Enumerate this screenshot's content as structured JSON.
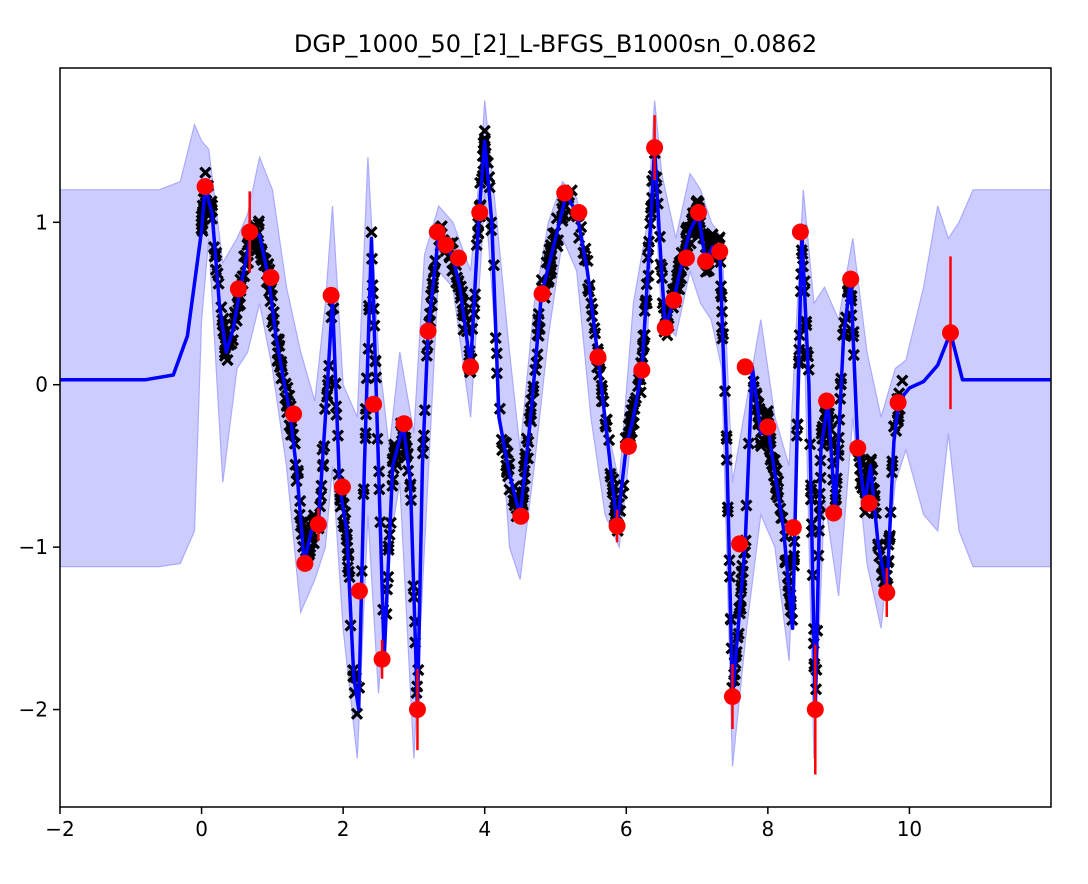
{
  "chart_data": {
    "type": "scatter",
    "title": "DGP_1000_50_[2]_L-BFGS_B1000sn_0.0862",
    "xlabel": "",
    "ylabel": "",
    "xlim": [
      -2,
      12
    ],
    "ylim": [
      -2.6,
      1.95
    ],
    "xticks": [
      -2,
      0,
      2,
      4,
      6,
      8,
      10
    ],
    "yticks": [
      -2,
      -1,
      0,
      1
    ],
    "xtick_labels": [
      "−2",
      "0",
      "2",
      "4",
      "6",
      "8",
      "10"
    ],
    "ytick_labels": [
      "−2",
      "−1",
      "0",
      "1"
    ],
    "grid": false,
    "legend": "none",
    "colors": {
      "mean": "#0000ff",
      "band_fill": "#ccccff",
      "band_edge": "#aaaaff",
      "inducing": "#ff0000",
      "data": "#000000"
    },
    "mean_curve": {
      "x": [
        -2.0,
        -0.8,
        -0.4,
        -0.2,
        0.0,
        0.05,
        0.15,
        0.25,
        0.35,
        0.45,
        0.55,
        0.7,
        0.82,
        0.95,
        1.05,
        1.15,
        1.25,
        1.35,
        1.45,
        1.55,
        1.65,
        1.75,
        1.85,
        1.95,
        2.05,
        2.15,
        2.22,
        2.3,
        2.4,
        2.5,
        2.58,
        2.7,
        2.85,
        2.95,
        3.05,
        3.12,
        3.2,
        3.35,
        3.45,
        3.55,
        3.65,
        3.8,
        3.92,
        4.0,
        4.1,
        4.2,
        4.35,
        4.5,
        4.65,
        4.8,
        5.0,
        5.15,
        5.3,
        5.45,
        5.6,
        5.75,
        5.87,
        6.0,
        6.1,
        6.22,
        6.32,
        6.4,
        6.47,
        6.55,
        6.67,
        6.8,
        6.9,
        7.02,
        7.12,
        7.22,
        7.32,
        7.42,
        7.5,
        7.58,
        7.68,
        7.78,
        7.9,
        8.0,
        8.1,
        8.22,
        8.35,
        8.48,
        8.58,
        8.67,
        8.75,
        8.85,
        8.95,
        9.07,
        9.17,
        9.27,
        9.37,
        9.45,
        9.55,
        9.68,
        9.78,
        9.85,
        10.0,
        10.2,
        10.4,
        10.58,
        10.75,
        11.0,
        12.0
      ],
      "y": [
        0.03,
        0.03,
        0.06,
        0.3,
        0.95,
        1.22,
        1.05,
        0.5,
        0.2,
        0.35,
        0.6,
        0.93,
        0.92,
        0.65,
        0.3,
        0.05,
        -0.18,
        -0.55,
        -1.1,
        -0.9,
        -0.85,
        -0.2,
        0.52,
        -0.62,
        -0.9,
        -1.8,
        -2.0,
        -0.5,
        0.9,
        -0.5,
        -1.68,
        -0.5,
        -0.25,
        -0.6,
        -2.0,
        -0.5,
        0.33,
        0.93,
        0.86,
        0.78,
        0.6,
        0.11,
        1.06,
        1.5,
        1.0,
        -0.2,
        -0.55,
        -0.81,
        -0.2,
        0.55,
        0.9,
        1.17,
        1.06,
        0.7,
        0.17,
        -0.4,
        -0.87,
        -0.38,
        -0.2,
        0.09,
        0.8,
        1.46,
        0.9,
        0.35,
        0.52,
        0.78,
        0.95,
        1.05,
        0.76,
        0.85,
        0.82,
        -0.4,
        -1.92,
        -1.5,
        -0.98,
        0.11,
        -0.3,
        -0.26,
        -0.55,
        -0.88,
        -1.5,
        0.94,
        0.0,
        -2.0,
        -0.4,
        -0.1,
        -0.79,
        0.3,
        0.65,
        -0.39,
        -0.73,
        -0.5,
        -0.95,
        -1.28,
        -0.35,
        -0.1,
        -0.02,
        0.02,
        0.12,
        0.32,
        0.03,
        0.03,
        0.03
      ]
    },
    "band_upper": {
      "x": [
        -2.0,
        -0.6,
        -0.3,
        -0.1,
        0.0,
        0.1,
        0.3,
        0.5,
        0.65,
        0.82,
        1.0,
        1.2,
        1.4,
        1.6,
        1.75,
        1.85,
        2.0,
        2.2,
        2.35,
        2.5,
        2.65,
        2.8,
        3.0,
        3.15,
        3.35,
        3.55,
        3.8,
        3.95,
        4.0,
        4.15,
        4.35,
        4.5,
        4.7,
        4.9,
        5.1,
        5.3,
        5.5,
        5.7,
        5.9,
        6.1,
        6.3,
        6.4,
        6.5,
        6.7,
        6.9,
        7.05,
        7.2,
        7.35,
        7.5,
        7.7,
        7.9,
        8.1,
        8.3,
        8.5,
        8.65,
        8.8,
        9.0,
        9.2,
        9.4,
        9.6,
        9.8,
        9.95,
        10.2,
        10.4,
        10.55,
        10.7,
        10.9,
        11.2,
        12.0
      ],
      "y": [
        1.2,
        1.2,
        1.25,
        1.6,
        1.5,
        1.45,
        0.75,
        0.9,
        1.05,
        1.4,
        1.2,
        0.6,
        0.2,
        -0.1,
        0.5,
        1.1,
        0.0,
        -0.2,
        1.4,
        0.2,
        -0.4,
        0.2,
        -0.3,
        0.8,
        1.1,
        1.0,
        0.7,
        1.4,
        1.75,
        1.1,
        0.2,
        -0.4,
        0.5,
        1.0,
        1.25,
        1.15,
        0.6,
        -0.2,
        -0.6,
        0.5,
        1.0,
        1.75,
        1.3,
        0.9,
        1.3,
        1.2,
        1.0,
        0.9,
        -0.6,
        -0.1,
        0.4,
        -0.2,
        -0.5,
        1.2,
        0.5,
        0.6,
        0.4,
        0.9,
        0.2,
        -0.2,
        0.1,
        0.15,
        0.6,
        1.1,
        0.9,
        1.0,
        1.2,
        1.2,
        1.2
      ]
    },
    "band_lower": {
      "x": [
        -2.0,
        -0.6,
        -0.3,
        -0.1,
        0.0,
        0.1,
        0.3,
        0.5,
        0.65,
        0.82,
        1.0,
        1.2,
        1.4,
        1.6,
        1.75,
        1.85,
        2.0,
        2.2,
        2.35,
        2.5,
        2.65,
        2.8,
        3.0,
        3.15,
        3.35,
        3.55,
        3.8,
        3.95,
        4.0,
        4.15,
        4.35,
        4.5,
        4.7,
        4.9,
        5.1,
        5.3,
        5.5,
        5.7,
        5.9,
        6.1,
        6.3,
        6.4,
        6.5,
        6.7,
        6.9,
        7.05,
        7.2,
        7.35,
        7.5,
        7.7,
        7.9,
        8.1,
        8.3,
        8.5,
        8.65,
        8.8,
        9.0,
        9.2,
        9.4,
        9.6,
        9.8,
        9.95,
        10.2,
        10.4,
        10.55,
        10.7,
        10.9,
        11.2,
        12.0
      ],
      "y": [
        -1.12,
        -1.12,
        -1.1,
        -0.9,
        0.4,
        0.9,
        -0.6,
        0.1,
        0.2,
        0.5,
        0.1,
        -0.5,
        -1.4,
        -1.2,
        -1.0,
        -0.5,
        -1.5,
        -2.3,
        -0.8,
        -1.9,
        -1.0,
        -0.6,
        -2.3,
        -1.0,
        0.7,
        0.6,
        -0.2,
        0.8,
        1.2,
        0.3,
        -1.0,
        -1.2,
        -0.5,
        0.3,
        0.9,
        0.7,
        -0.2,
        -0.8,
        -1.0,
        -0.2,
        0.3,
        1.2,
        0.4,
        0.3,
        0.7,
        0.5,
        0.4,
        0.1,
        -2.35,
        -1.5,
        -0.8,
        -1.0,
        -1.7,
        0.6,
        -2.3,
        -0.7,
        -1.3,
        -0.2,
        -1.1,
        -1.5,
        -0.6,
        -0.4,
        -0.8,
        -0.9,
        -0.3,
        -0.9,
        -1.12,
        -1.12,
        -1.12
      ]
    },
    "inducing_points": [
      {
        "x": 0.05,
        "y": 1.22,
        "err": 0.05
      },
      {
        "x": 0.52,
        "y": 0.59,
        "err": 0.05
      },
      {
        "x": 0.68,
        "y": 0.94,
        "err": 0.25
      },
      {
        "x": 0.98,
        "y": 0.66,
        "err": 0.05
      },
      {
        "x": 1.3,
        "y": -0.18,
        "err": 0.05
      },
      {
        "x": 1.46,
        "y": -1.1,
        "err": 0.05
      },
      {
        "x": 1.65,
        "y": -0.86,
        "err": 0.1
      },
      {
        "x": 1.83,
        "y": 0.55,
        "err": 0.05
      },
      {
        "x": 1.99,
        "y": -0.63,
        "err": 0.05
      },
      {
        "x": 2.23,
        "y": -1.27,
        "err": 0.05
      },
      {
        "x": 2.43,
        "y": -0.12,
        "err": 0.05
      },
      {
        "x": 2.55,
        "y": -1.69,
        "err": 0.12
      },
      {
        "x": 2.86,
        "y": -0.24,
        "err": 0.05
      },
      {
        "x": 3.05,
        "y": -2.0,
        "err": 0.25
      },
      {
        "x": 3.2,
        "y": 0.33,
        "err": 0.05
      },
      {
        "x": 3.33,
        "y": 0.94,
        "err": 0.05
      },
      {
        "x": 3.45,
        "y": 0.86,
        "err": 0.05
      },
      {
        "x": 3.63,
        "y": 0.78,
        "err": 0.05
      },
      {
        "x": 3.8,
        "y": 0.11,
        "err": 0.05
      },
      {
        "x": 3.93,
        "y": 1.06,
        "err": 0.05
      },
      {
        "x": 4.51,
        "y": -0.81,
        "err": 0.05
      },
      {
        "x": 4.81,
        "y": 0.56,
        "err": 0.05
      },
      {
        "x": 5.13,
        "y": 1.18,
        "err": 0.05
      },
      {
        "x": 5.33,
        "y": 1.06,
        "err": 0.05
      },
      {
        "x": 5.6,
        "y": 0.17,
        "err": 0.05
      },
      {
        "x": 5.87,
        "y": -0.87,
        "err": 0.1
      },
      {
        "x": 6.03,
        "y": -0.38,
        "err": 0.05
      },
      {
        "x": 6.22,
        "y": 0.09,
        "err": 0.05
      },
      {
        "x": 6.4,
        "y": 1.46,
        "err": 0.2
      },
      {
        "x": 6.55,
        "y": 0.35,
        "err": 0.05
      },
      {
        "x": 6.67,
        "y": 0.52,
        "err": 0.05
      },
      {
        "x": 6.85,
        "y": 0.78,
        "err": 0.05
      },
      {
        "x": 7.02,
        "y": 1.06,
        "err": 0.05
      },
      {
        "x": 7.12,
        "y": 0.76,
        "err": 0.05
      },
      {
        "x": 7.32,
        "y": 0.82,
        "err": 0.05
      },
      {
        "x": 7.5,
        "y": -1.92,
        "err": 0.2
      },
      {
        "x": 7.6,
        "y": -0.98,
        "err": 0.05
      },
      {
        "x": 7.68,
        "y": 0.11,
        "err": 0.05
      },
      {
        "x": 8.0,
        "y": -0.26,
        "err": 0.05
      },
      {
        "x": 8.36,
        "y": -0.88,
        "err": 0.05
      },
      {
        "x": 8.46,
        "y": 0.94,
        "err": 0.05
      },
      {
        "x": 8.67,
        "y": -2.0,
        "err": 0.4
      },
      {
        "x": 8.83,
        "y": -0.1,
        "err": 0.05
      },
      {
        "x": 8.93,
        "y": -0.79,
        "err": 0.05
      },
      {
        "x": 9.17,
        "y": 0.65,
        "err": 0.05
      },
      {
        "x": 9.27,
        "y": -0.39,
        "err": 0.05
      },
      {
        "x": 9.43,
        "y": -0.73,
        "err": 0.05
      },
      {
        "x": 9.68,
        "y": -1.28,
        "err": 0.15
      },
      {
        "x": 9.84,
        "y": -0.11,
        "err": 0.05
      },
      {
        "x": 10.58,
        "y": 0.32,
        "err": 0.47
      }
    ]
  }
}
